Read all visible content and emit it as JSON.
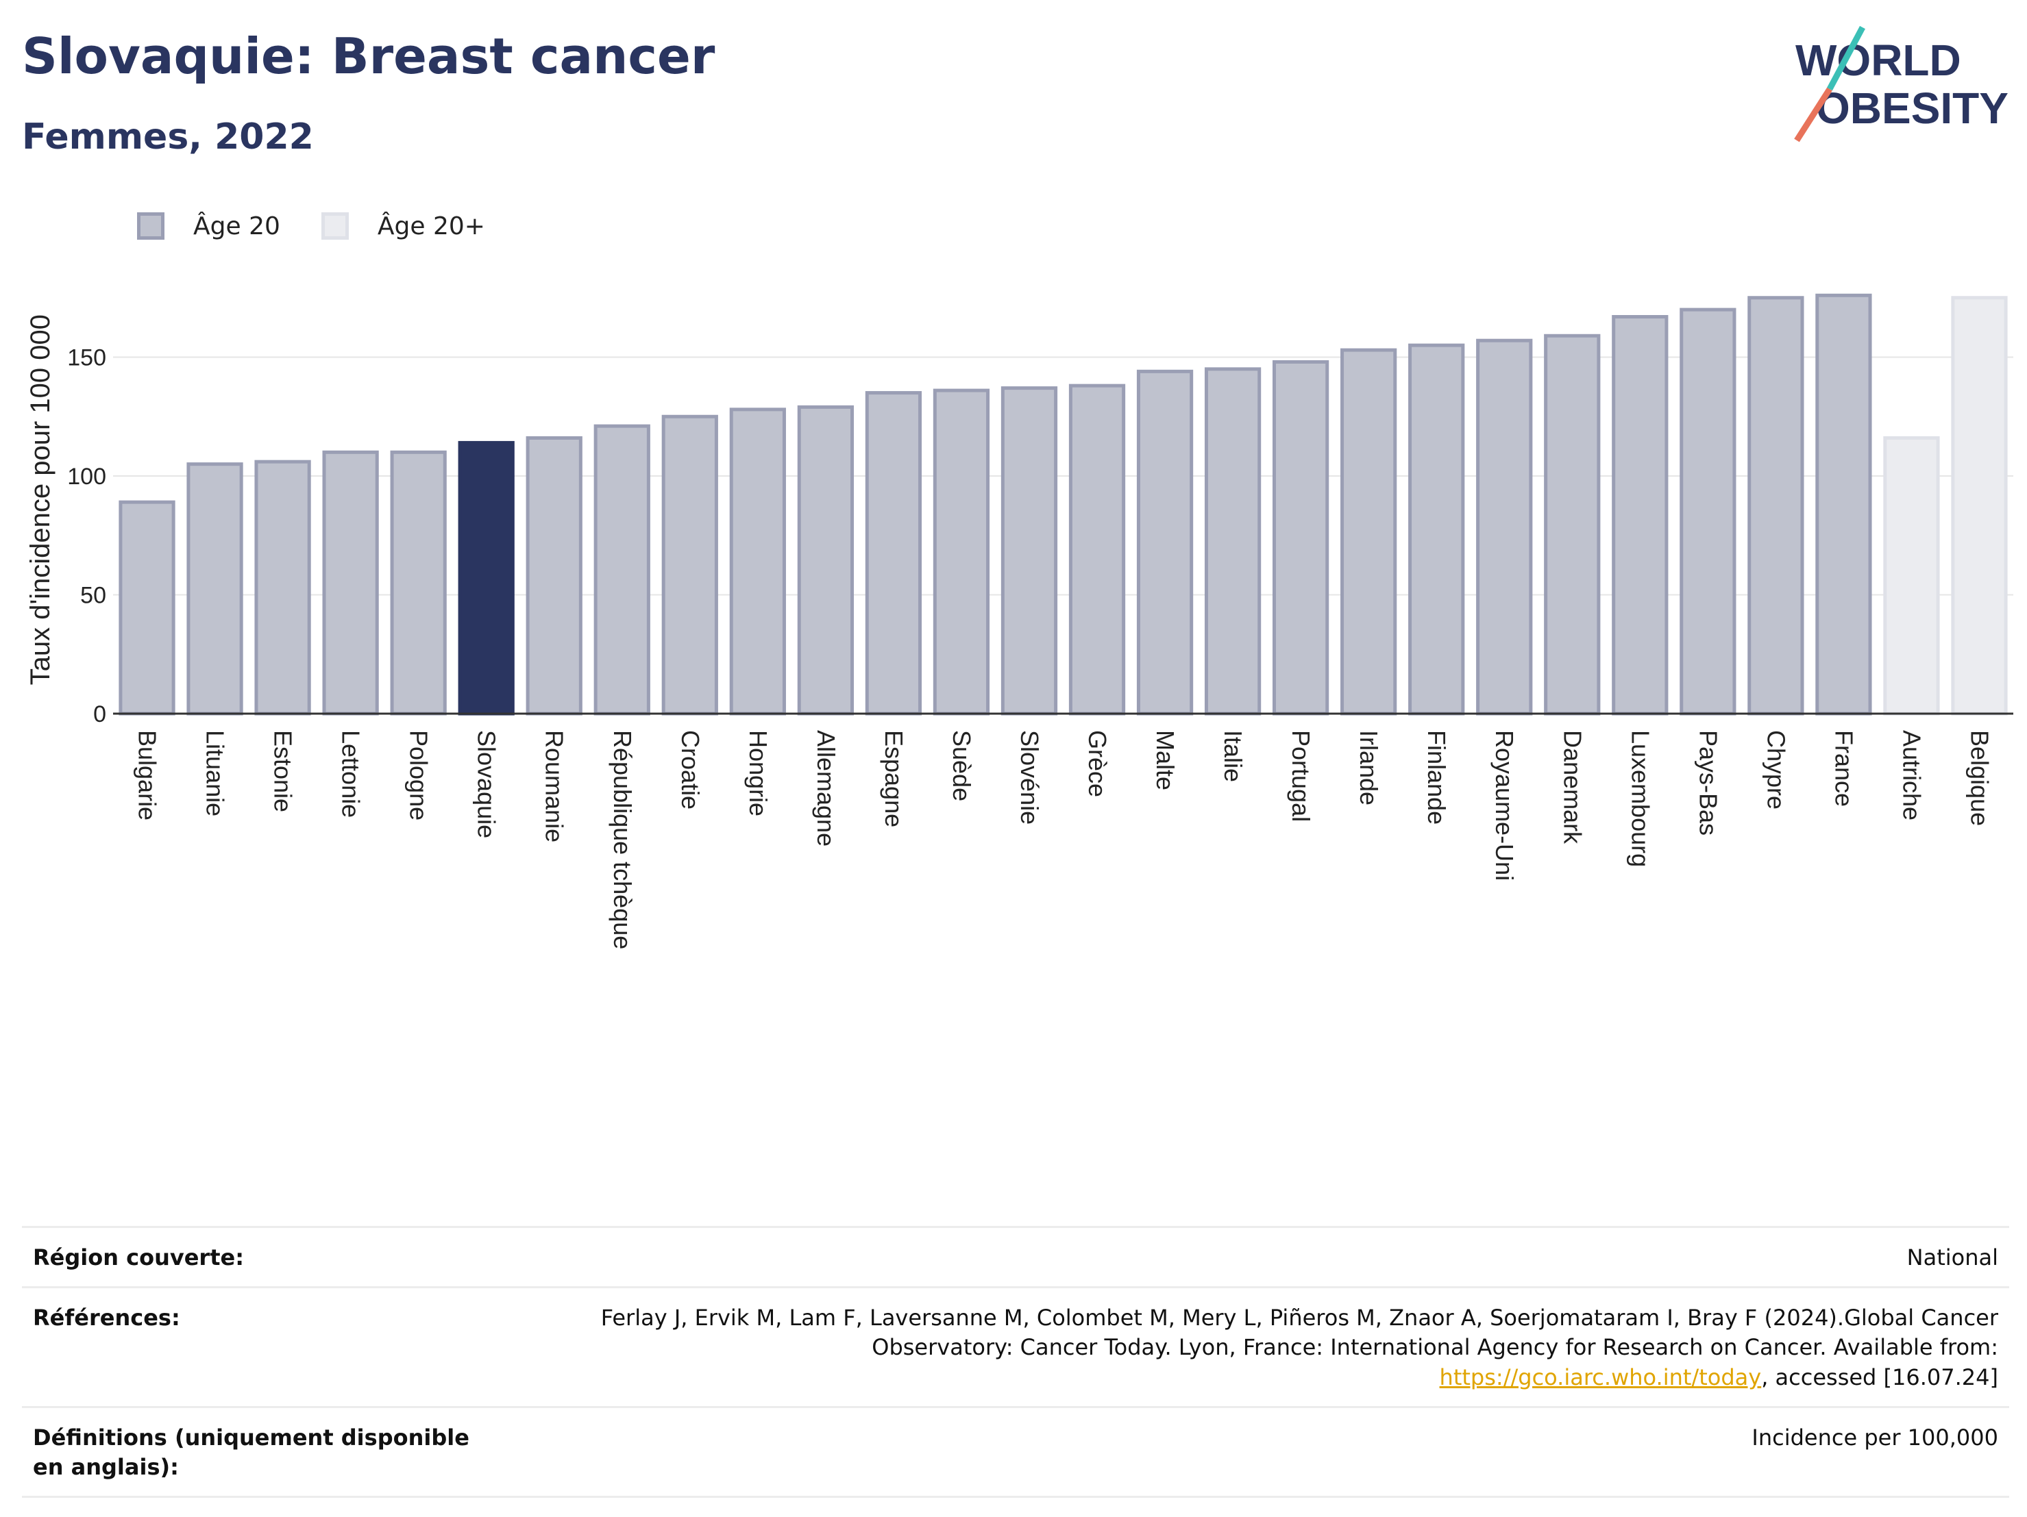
{
  "title": "Slovaquie: Breast cancer",
  "subtitle": "Femmes, 2022",
  "logo": {
    "line1": "WORLD",
    "line2": "OBESITY"
  },
  "legend": [
    {
      "label": "Âge 20",
      "color": "#bfc2ce",
      "border": "#9a9eb4"
    },
    {
      "label": "Âge 20+",
      "color": "#ebecf0",
      "border": "#dfe1e8"
    }
  ],
  "colors": {
    "highlight": "#2a3560",
    "age20": "#bfc2ce",
    "age20_border": "#9a9eb4",
    "age20plus": "#ebecf0",
    "age20plus_border": "#dfe1e8"
  },
  "chart_data": {
    "type": "bar",
    "ylabel": "Taux d'incidence pour 100 000",
    "ylim": [
      0,
      180
    ],
    "yticks": [
      0,
      50,
      100,
      150
    ],
    "grid": true,
    "legend_position": "top-left",
    "highlight": "Slovaquie",
    "categories": [
      "Bulgarie",
      "Lituanie",
      "Estonie",
      "Lettonie",
      "Pologne",
      "Slovaquie",
      "Roumanie",
      "République tchèque",
      "Croatie",
      "Hongrie",
      "Allemagne",
      "Espagne",
      "Suède",
      "Slovénie",
      "Grèce",
      "Malte",
      "Italie",
      "Portugal",
      "Irlande",
      "Finlande",
      "Royaume-Uni",
      "Danemark",
      "Luxembourg",
      "Pays-Bas",
      "Chypre",
      "France",
      "Autriche",
      "Belgique"
    ],
    "values": [
      89,
      105,
      106,
      110,
      110,
      114,
      116,
      121,
      125,
      128,
      129,
      135,
      136,
      137,
      138,
      144,
      145,
      148,
      153,
      155,
      157,
      159,
      167,
      170,
      175,
      176,
      116,
      175
    ],
    "groups": [
      "Âge 20",
      "Âge 20",
      "Âge 20",
      "Âge 20",
      "Âge 20",
      "Âge 20",
      "Âge 20",
      "Âge 20",
      "Âge 20",
      "Âge 20",
      "Âge 20",
      "Âge 20",
      "Âge 20",
      "Âge 20",
      "Âge 20",
      "Âge 20",
      "Âge 20",
      "Âge 20",
      "Âge 20",
      "Âge 20",
      "Âge 20",
      "Âge 20",
      "Âge 20",
      "Âge 20",
      "Âge 20",
      "Âge 20",
      "Âge 20+",
      "Âge 20+"
    ]
  },
  "footer": {
    "region_label": "Région couverte:",
    "region_value": "National",
    "refs_label": "Références:",
    "refs_text": "Ferlay J, Ervik M, Lam F, Laversanne M, Colombet M, Mery L, Piñeros M, Znaor A, Soerjomataram I, Bray F (2024).Global Cancer Observatory: Cancer Today. Lyon, France: International Agency for Research on Cancer. Available from:",
    "refs_link": "https://gco.iarc.who.int/today",
    "refs_after": ", accessed [16.07.24]",
    "defs_label": "Définitions (uniquement disponible en anglais):",
    "defs_value": "Incidence per 100,000"
  }
}
